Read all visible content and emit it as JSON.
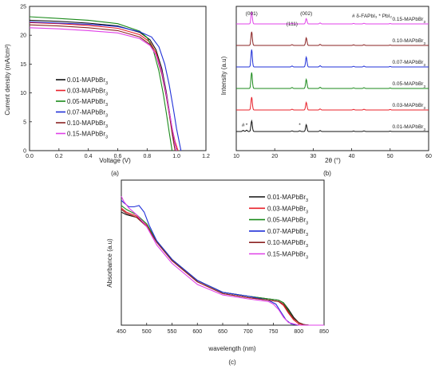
{
  "chart_data": [
    {
      "id": "a",
      "panel_label": "(a)",
      "type": "line",
      "xlabel": "Voltage (V)",
      "ylabel": "Current density (mA/cm²)",
      "xlim": [
        0.0,
        1.2
      ],
      "ylim": [
        0,
        25
      ],
      "xticks": [
        "0.0",
        "0.2",
        "0.4",
        "0.6",
        "0.8",
        "1.0",
        "1.2"
      ],
      "yticks": [
        "0",
        "5",
        "10",
        "15",
        "20",
        "25"
      ],
      "legend_position": "center-left",
      "series": [
        {
          "name": "0.01-MAPbBr₃",
          "color": "#111111",
          "x": [
            0,
            0.2,
            0.4,
            0.6,
            0.75,
            0.82,
            0.86,
            0.9,
            0.93,
            0.96,
            0.98,
            1.0
          ],
          "y": [
            22.6,
            22.4,
            22.1,
            21.6,
            20.5,
            19.2,
            17.5,
            14.2,
            10.2,
            5.4,
            2.2,
            0
          ]
        },
        {
          "name": "0.03-MAPbBr₃",
          "color": "#e8202a",
          "x": [
            0,
            0.2,
            0.4,
            0.6,
            0.75,
            0.82,
            0.86,
            0.9,
            0.93,
            0.96,
            0.99,
            1.01
          ],
          "y": [
            22.2,
            22.0,
            21.7,
            21.2,
            20.1,
            18.8,
            17.0,
            13.6,
            9.6,
            5.0,
            1.6,
            0
          ]
        },
        {
          "name": "0.05-MAPbBr₃",
          "color": "#1a8a1a",
          "x": [
            0,
            0.2,
            0.4,
            0.6,
            0.75,
            0.8,
            0.84,
            0.88,
            0.91,
            0.93,
            0.95,
            0.97
          ],
          "y": [
            23.2,
            22.9,
            22.6,
            22.0,
            20.7,
            19.6,
            17.6,
            13.8,
            9.8,
            6.6,
            3.2,
            0
          ]
        },
        {
          "name": "0.07-MAPbBr₃",
          "color": "#2030d8",
          "x": [
            0,
            0.2,
            0.4,
            0.6,
            0.75,
            0.83,
            0.88,
            0.92,
            0.95,
            0.98,
            1.0,
            1.03
          ],
          "y": [
            22.3,
            22.1,
            21.9,
            21.5,
            20.6,
            19.7,
            18.0,
            15.0,
            11.4,
            7.0,
            3.8,
            0
          ]
        },
        {
          "name": "0.10-MAPbBr₃",
          "color": "#8b2323",
          "x": [
            0,
            0.2,
            0.4,
            0.6,
            0.75,
            0.82,
            0.86,
            0.9,
            0.93,
            0.95,
            0.97,
            0.99
          ],
          "y": [
            21.8,
            21.6,
            21.3,
            20.8,
            19.7,
            18.4,
            16.6,
            13.2,
            9.4,
            6.4,
            3.0,
            0
          ]
        },
        {
          "name": "0.15-MAPbBr₃",
          "color": "#e040e8",
          "x": [
            0,
            0.2,
            0.4,
            0.6,
            0.75,
            0.82,
            0.86,
            0.9,
            0.93,
            0.96,
            0.99,
            1.0
          ],
          "y": [
            21.3,
            21.1,
            20.8,
            20.4,
            19.4,
            18.2,
            16.6,
            13.6,
            9.8,
            5.4,
            1.2,
            0
          ]
        }
      ]
    },
    {
      "id": "b",
      "panel_label": "(b)",
      "type": "line",
      "xlabel": "2θ (°)",
      "ylabel": "Intensity (a.u)",
      "xlim": [
        10,
        60
      ],
      "xticks": [
        "10",
        "20",
        "30",
        "40",
        "50",
        "60"
      ],
      "legend_position": "top-right",
      "legend_text": "# δ-FAPbI₃  * PbI₂",
      "peak_labels": [
        "(001)",
        "(111)",
        "(002)"
      ],
      "peak_positions": [
        14.0,
        24.5,
        28.2
      ],
      "marker_labels": [
        "#",
        "*",
        "*"
      ],
      "marker_positions": [
        11.8,
        12.7,
        26.5
      ],
      "series": [
        {
          "name": "0.01-MAPbBr₃",
          "color": "#111111",
          "peaks": [
            [
              11.8,
              1.5
            ],
            [
              12.7,
              1.8
            ],
            [
              14.0,
              14
            ],
            [
              24.5,
              0.8
            ],
            [
              26.5,
              1.0
            ],
            [
              28.2,
              9
            ],
            [
              31.8,
              1.2
            ],
            [
              40.5,
              0.6
            ],
            [
              43.2,
              0.8
            ],
            [
              50.0,
              0.5
            ]
          ]
        },
        {
          "name": "0.03-MAPbBr₃",
          "color": "#e8202a",
          "peaks": [
            [
              14.0,
              17
            ],
            [
              24.5,
              1.0
            ],
            [
              28.2,
              10
            ],
            [
              31.8,
              1.3
            ],
            [
              40.5,
              0.7
            ],
            [
              43.2,
              0.9
            ],
            [
              50.0,
              0.6
            ]
          ]
        },
        {
          "name": "0.05-MAPbBr₃",
          "color": "#1a8a1a",
          "peaks": [
            [
              14.0,
              21
            ],
            [
              24.5,
              1.2
            ],
            [
              28.2,
              12
            ],
            [
              31.8,
              1.5
            ],
            [
              40.5,
              0.8
            ],
            [
              43.2,
              1.0
            ],
            [
              50.0,
              0.6
            ]
          ]
        },
        {
          "name": "0.07-MAPbBr₃",
          "color": "#2030d8",
          "peaks": [
            [
              14.0,
              23
            ],
            [
              24.5,
              1.2
            ],
            [
              28.2,
              13
            ],
            [
              31.8,
              1.6
            ],
            [
              40.5,
              0.8
            ],
            [
              43.2,
              1.1
            ],
            [
              50.0,
              0.6
            ]
          ]
        },
        {
          "name": "0.10-MAPbBr₃",
          "color": "#8b2323",
          "peaks": [
            [
              14.0,
              18
            ],
            [
              24.5,
              1.0
            ],
            [
              28.2,
              10
            ],
            [
              31.8,
              1.3
            ],
            [
              40.5,
              0.7
            ],
            [
              43.2,
              0.9
            ],
            [
              50.0,
              0.5
            ]
          ]
        },
        {
          "name": "0.15-MAPbBr₃",
          "color": "#e040e8",
          "peaks": [
            [
              14.0,
              16
            ],
            [
              24.5,
              0.9
            ],
            [
              28.2,
              7
            ],
            [
              31.8,
              1.2
            ],
            [
              40.5,
              0.6
            ],
            [
              43.2,
              0.8
            ],
            [
              50.0,
              0.5
            ]
          ]
        }
      ]
    },
    {
      "id": "c",
      "panel_label": "(c)",
      "type": "line",
      "xlabel": "wavelength (nm)",
      "ylabel": "Absorbance (a.u)",
      "xlim": [
        450,
        850
      ],
      "ylim": [
        0,
        1
      ],
      "xticks": [
        "450",
        "500",
        "550",
        "600",
        "650",
        "700",
        "750",
        "800",
        "850"
      ],
      "legend_position": "top-right",
      "series": [
        {
          "name": "0.01-MAPbBr₃",
          "color": "#111111",
          "x": [
            450,
            460,
            480,
            500,
            520,
            550,
            600,
            650,
            700,
            740,
            760,
            770,
            780,
            790,
            800,
            810,
            820,
            850
          ],
          "y": [
            0.86,
            0.84,
            0.82,
            0.76,
            0.64,
            0.5,
            0.34,
            0.25,
            0.22,
            0.2,
            0.19,
            0.17,
            0.12,
            0.06,
            0.02,
            0.005,
            0,
            0
          ]
        },
        {
          "name": "0.03-MAPbBr₃",
          "color": "#e8202a",
          "x": [
            450,
            460,
            480,
            500,
            520,
            550,
            600,
            650,
            700,
            740,
            760,
            770,
            780,
            790,
            800,
            810,
            820,
            850
          ],
          "y": [
            0.89,
            0.86,
            0.83,
            0.76,
            0.63,
            0.49,
            0.33,
            0.24,
            0.21,
            0.19,
            0.18,
            0.15,
            0.09,
            0.04,
            0.01,
            0.003,
            0,
            0
          ]
        },
        {
          "name": "0.05-MAPbBr₃",
          "color": "#1a8a1a",
          "x": [
            450,
            460,
            480,
            500,
            520,
            550,
            600,
            650,
            700,
            740,
            760,
            770,
            780,
            790,
            800,
            810,
            820,
            850
          ],
          "y": [
            0.91,
            0.88,
            0.84,
            0.77,
            0.64,
            0.5,
            0.34,
            0.25,
            0.22,
            0.2,
            0.19,
            0.17,
            0.11,
            0.05,
            0.02,
            0.004,
            0,
            0
          ]
        },
        {
          "name": "0.07-MAPbBr₃",
          "color": "#2030d8",
          "x": [
            450,
            455,
            465,
            475,
            485,
            495,
            505,
            520,
            550,
            600,
            650,
            700,
            740,
            755,
            765,
            775,
            785,
            800,
            850
          ],
          "y": [
            0.95,
            0.93,
            0.9,
            0.9,
            0.91,
            0.86,
            0.76,
            0.64,
            0.5,
            0.34,
            0.25,
            0.22,
            0.19,
            0.16,
            0.1,
            0.04,
            0.01,
            0,
            0
          ]
        },
        {
          "name": "0.10-MAPbBr₃",
          "color": "#8b2323",
          "x": [
            450,
            460,
            480,
            500,
            520,
            550,
            600,
            650,
            700,
            740,
            760,
            770,
            780,
            790,
            800,
            810,
            820,
            850
          ],
          "y": [
            0.88,
            0.85,
            0.82,
            0.75,
            0.63,
            0.49,
            0.33,
            0.24,
            0.21,
            0.19,
            0.18,
            0.16,
            0.1,
            0.05,
            0.02,
            0.004,
            0,
            0
          ]
        },
        {
          "name": "0.15-MAPbBr₃",
          "color": "#e040e8",
          "x": [
            450,
            455,
            465,
            480,
            500,
            520,
            550,
            600,
            650,
            700,
            740,
            750,
            760,
            770,
            780,
            800,
            850
          ],
          "y": [
            0.98,
            0.94,
            0.89,
            0.84,
            0.75,
            0.61,
            0.47,
            0.31,
            0.23,
            0.2,
            0.18,
            0.16,
            0.12,
            0.06,
            0.02,
            0,
            0
          ]
        }
      ]
    }
  ]
}
